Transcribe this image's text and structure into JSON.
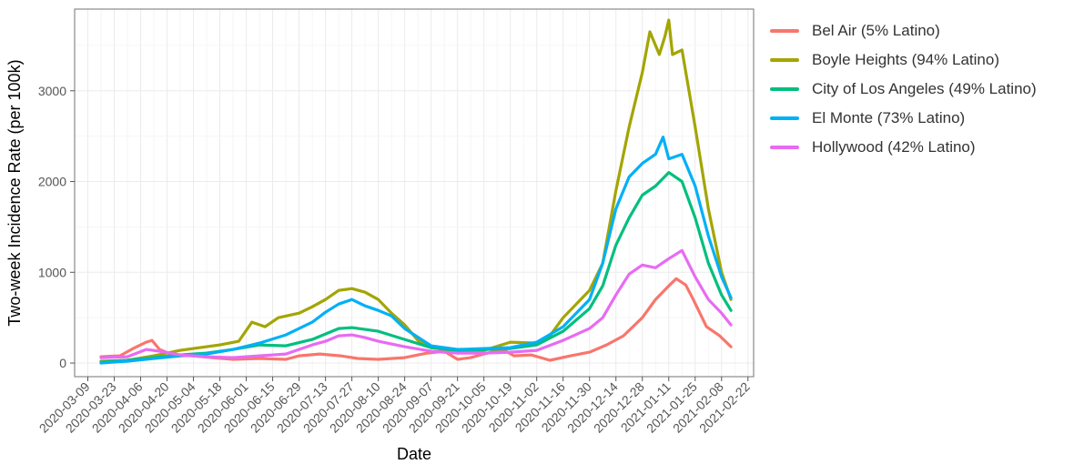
{
  "chart_data": {
    "type": "line",
    "title": "",
    "xlabel": "Date",
    "ylabel": "Two-week Incidence Rate (per 100k)",
    "xlim": [
      "2020-03-02",
      "2021-02-25"
    ],
    "ylim": [
      -150,
      3900
    ],
    "x_ticks": [
      "2020-03-09",
      "2020-03-23",
      "2020-04-06",
      "2020-04-20",
      "2020-05-04",
      "2020-05-18",
      "2020-06-01",
      "2020-06-15",
      "2020-06-29",
      "2020-07-13",
      "2020-07-27",
      "2020-08-10",
      "2020-08-24",
      "2020-09-07",
      "2020-09-21",
      "2020-10-05",
      "2020-10-19",
      "2020-11-02",
      "2020-11-16",
      "2020-11-30",
      "2020-12-14",
      "2020-12-28",
      "2021-01-11",
      "2021-01-25",
      "2021-02-08",
      "2021-02-22"
    ],
    "y_ticks": [
      0,
      1000,
      2000,
      3000
    ],
    "grid": true,
    "legend_position": "right",
    "series": [
      {
        "name": "Bel Air (5% Latino)",
        "color": "#F8766D",
        "points": [
          [
            "2020-03-16",
            70
          ],
          [
            "2020-03-26",
            80
          ],
          [
            "2020-04-02",
            160
          ],
          [
            "2020-04-09",
            230
          ],
          [
            "2020-04-12",
            250
          ],
          [
            "2020-04-16",
            150
          ],
          [
            "2020-04-23",
            90
          ],
          [
            "2020-05-04",
            80
          ],
          [
            "2020-05-14",
            60
          ],
          [
            "2020-05-25",
            40
          ],
          [
            "2020-06-08",
            50
          ],
          [
            "2020-06-22",
            40
          ],
          [
            "2020-06-29",
            80
          ],
          [
            "2020-07-10",
            100
          ],
          [
            "2020-07-21",
            80
          ],
          [
            "2020-07-30",
            50
          ],
          [
            "2020-08-10",
            40
          ],
          [
            "2020-08-24",
            60
          ],
          [
            "2020-09-05",
            110
          ],
          [
            "2020-09-14",
            130
          ],
          [
            "2020-09-21",
            40
          ],
          [
            "2020-09-28",
            60
          ],
          [
            "2020-10-05",
            100
          ],
          [
            "2020-10-15",
            150
          ],
          [
            "2020-10-21",
            80
          ],
          [
            "2020-10-30",
            90
          ],
          [
            "2020-11-09",
            30
          ],
          [
            "2020-11-20",
            80
          ],
          [
            "2020-11-30",
            120
          ],
          [
            "2020-12-09",
            200
          ],
          [
            "2020-12-18",
            300
          ],
          [
            "2020-12-28",
            500
          ],
          [
            "2021-01-04",
            700
          ],
          [
            "2021-01-11",
            850
          ],
          [
            "2021-01-15",
            930
          ],
          [
            "2021-01-20",
            860
          ],
          [
            "2021-01-24",
            700
          ],
          [
            "2021-01-31",
            400
          ],
          [
            "2021-02-07",
            300
          ],
          [
            "2021-02-13",
            180
          ]
        ]
      },
      {
        "name": "Boyle Heights (94% Latino)",
        "color": "#A3A500",
        "points": [
          [
            "2020-03-16",
            20
          ],
          [
            "2020-03-30",
            30
          ],
          [
            "2020-04-13",
            80
          ],
          [
            "2020-04-27",
            140
          ],
          [
            "2020-05-04",
            160
          ],
          [
            "2020-05-18",
            200
          ],
          [
            "2020-05-28",
            240
          ],
          [
            "2020-06-04",
            450
          ],
          [
            "2020-06-11",
            400
          ],
          [
            "2020-06-18",
            500
          ],
          [
            "2020-06-29",
            550
          ],
          [
            "2020-07-06",
            620
          ],
          [
            "2020-07-13",
            700
          ],
          [
            "2020-07-20",
            800
          ],
          [
            "2020-07-27",
            820
          ],
          [
            "2020-08-03",
            780
          ],
          [
            "2020-08-10",
            700
          ],
          [
            "2020-08-17",
            550
          ],
          [
            "2020-08-24",
            420
          ],
          [
            "2020-08-31",
            250
          ],
          [
            "2020-09-07",
            170
          ],
          [
            "2020-09-21",
            130
          ],
          [
            "2020-10-05",
            140
          ],
          [
            "2020-10-19",
            230
          ],
          [
            "2020-11-02",
            220
          ],
          [
            "2020-11-09",
            300
          ],
          [
            "2020-11-16",
            500
          ],
          [
            "2020-11-23",
            650
          ],
          [
            "2020-11-30",
            800
          ],
          [
            "2020-12-07",
            1100
          ],
          [
            "2020-12-14",
            1900
          ],
          [
            "2020-12-21",
            2600
          ],
          [
            "2020-12-28",
            3200
          ],
          [
            "2021-01-01",
            3650
          ],
          [
            "2021-01-06",
            3400
          ],
          [
            "2021-01-09",
            3600
          ],
          [
            "2021-01-11",
            3780
          ],
          [
            "2021-01-13",
            3400
          ],
          [
            "2021-01-18",
            3450
          ],
          [
            "2021-01-25",
            2600
          ],
          [
            "2021-02-01",
            1700
          ],
          [
            "2021-02-08",
            1000
          ],
          [
            "2021-02-13",
            700
          ]
        ]
      },
      {
        "name": "City of Los Angeles (49% Latino)",
        "color": "#00BF7D",
        "points": [
          [
            "2020-03-16",
            10
          ],
          [
            "2020-03-30",
            30
          ],
          [
            "2020-04-13",
            60
          ],
          [
            "2020-04-27",
            90
          ],
          [
            "2020-05-11",
            110
          ],
          [
            "2020-05-25",
            150
          ],
          [
            "2020-06-08",
            200
          ],
          [
            "2020-06-22",
            190
          ],
          [
            "2020-07-06",
            260
          ],
          [
            "2020-07-13",
            320
          ],
          [
            "2020-07-20",
            380
          ],
          [
            "2020-07-27",
            390
          ],
          [
            "2020-08-03",
            370
          ],
          [
            "2020-08-10",
            350
          ],
          [
            "2020-08-24",
            260
          ],
          [
            "2020-09-07",
            170
          ],
          [
            "2020-09-21",
            140
          ],
          [
            "2020-10-05",
            150
          ],
          [
            "2020-10-19",
            160
          ],
          [
            "2020-11-02",
            200
          ],
          [
            "2020-11-16",
            350
          ],
          [
            "2020-11-30",
            600
          ],
          [
            "2020-12-07",
            850
          ],
          [
            "2020-12-14",
            1300
          ],
          [
            "2020-12-21",
            1600
          ],
          [
            "2020-12-28",
            1850
          ],
          [
            "2021-01-04",
            1950
          ],
          [
            "2021-01-11",
            2100
          ],
          [
            "2021-01-18",
            2000
          ],
          [
            "2021-01-25",
            1600
          ],
          [
            "2021-02-01",
            1100
          ],
          [
            "2021-02-08",
            750
          ],
          [
            "2021-02-13",
            580
          ]
        ]
      },
      {
        "name": "El Monte (73% Latino)",
        "color": "#00B0F6",
        "points": [
          [
            "2020-03-16",
            0
          ],
          [
            "2020-03-30",
            20
          ],
          [
            "2020-04-13",
            50
          ],
          [
            "2020-04-27",
            80
          ],
          [
            "2020-05-11",
            100
          ],
          [
            "2020-05-25",
            150
          ],
          [
            "2020-06-08",
            220
          ],
          [
            "2020-06-22",
            310
          ],
          [
            "2020-07-06",
            450
          ],
          [
            "2020-07-13",
            560
          ],
          [
            "2020-07-20",
            650
          ],
          [
            "2020-07-27",
            700
          ],
          [
            "2020-08-03",
            630
          ],
          [
            "2020-08-10",
            580
          ],
          [
            "2020-08-17",
            520
          ],
          [
            "2020-08-24",
            380
          ],
          [
            "2020-09-07",
            190
          ],
          [
            "2020-09-21",
            150
          ],
          [
            "2020-10-05",
            160
          ],
          [
            "2020-10-19",
            170
          ],
          [
            "2020-11-02",
            230
          ],
          [
            "2020-11-16",
            400
          ],
          [
            "2020-11-30",
            700
          ],
          [
            "2020-12-07",
            1100
          ],
          [
            "2020-12-14",
            1700
          ],
          [
            "2020-12-21",
            2050
          ],
          [
            "2020-12-28",
            2200
          ],
          [
            "2021-01-04",
            2300
          ],
          [
            "2021-01-08",
            2490
          ],
          [
            "2021-01-11",
            2250
          ],
          [
            "2021-01-18",
            2300
          ],
          [
            "2021-01-25",
            1950
          ],
          [
            "2021-02-01",
            1400
          ],
          [
            "2021-02-08",
            950
          ],
          [
            "2021-02-13",
            720
          ]
        ]
      },
      {
        "name": "Hollywood (42% Latino)",
        "color": "#E76BF3",
        "points": [
          [
            "2020-03-16",
            60
          ],
          [
            "2020-03-30",
            70
          ],
          [
            "2020-04-09",
            150
          ],
          [
            "2020-04-16",
            130
          ],
          [
            "2020-04-27",
            90
          ],
          [
            "2020-05-11",
            70
          ],
          [
            "2020-05-25",
            60
          ],
          [
            "2020-06-08",
            80
          ],
          [
            "2020-06-22",
            100
          ],
          [
            "2020-07-06",
            200
          ],
          [
            "2020-07-13",
            240
          ],
          [
            "2020-07-20",
            300
          ],
          [
            "2020-07-27",
            310
          ],
          [
            "2020-08-03",
            280
          ],
          [
            "2020-08-10",
            240
          ],
          [
            "2020-08-24",
            180
          ],
          [
            "2020-09-07",
            130
          ],
          [
            "2020-09-21",
            110
          ],
          [
            "2020-10-05",
            110
          ],
          [
            "2020-10-19",
            120
          ],
          [
            "2020-11-02",
            140
          ],
          [
            "2020-11-16",
            250
          ],
          [
            "2020-11-30",
            380
          ],
          [
            "2020-12-07",
            500
          ],
          [
            "2020-12-14",
            750
          ],
          [
            "2020-12-21",
            980
          ],
          [
            "2020-12-28",
            1080
          ],
          [
            "2021-01-04",
            1050
          ],
          [
            "2021-01-11",
            1150
          ],
          [
            "2021-01-18",
            1240
          ],
          [
            "2021-01-25",
            950
          ],
          [
            "2021-02-01",
            700
          ],
          [
            "2021-02-08",
            550
          ],
          [
            "2021-02-13",
            420
          ]
        ]
      }
    ]
  }
}
